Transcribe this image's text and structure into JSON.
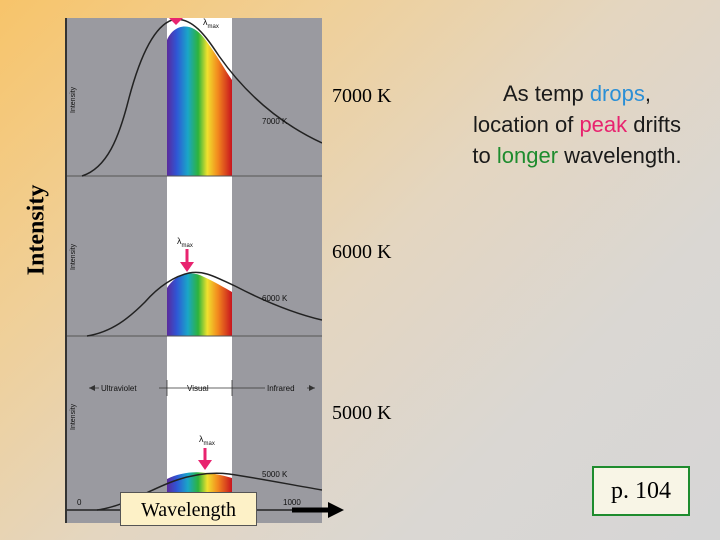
{
  "slide": {
    "y_axis_title": "Intensity",
    "temps": {
      "t7000": "7000 K",
      "t6000": "6000 K",
      "t5000": "5000 K"
    },
    "annotation": {
      "p1": "As temp ",
      "w_drops": "drops",
      "p2": ", location of ",
      "w_peak": "peak",
      "p3": " drifts to ",
      "w_longer": "longer",
      "p4": " wavelength."
    },
    "wavelength_label": "Wavelength",
    "page_ref": "p. 104",
    "colors": {
      "drops": "#2b8fd6",
      "peak": "#e8236f",
      "longer": "#1e8c2e",
      "box_border": "#1e8c2e"
    }
  },
  "figure": {
    "panel_ylabels": {
      "p1": "Intensity",
      "p2": "Intensity",
      "p3": "Intensity"
    },
    "curve_labels": {
      "c7000": "7000 K",
      "c6000": "6000 K",
      "c5000": "5000 K"
    },
    "lambda_max": {
      "symbol": "λ",
      "subscript": "max"
    },
    "regions": {
      "uv": "Ultraviolet",
      "visual": "Visual",
      "ir": "Infrared"
    },
    "x_ticks": {
      "t0": "0",
      "t1000": "1000"
    }
  }
}
